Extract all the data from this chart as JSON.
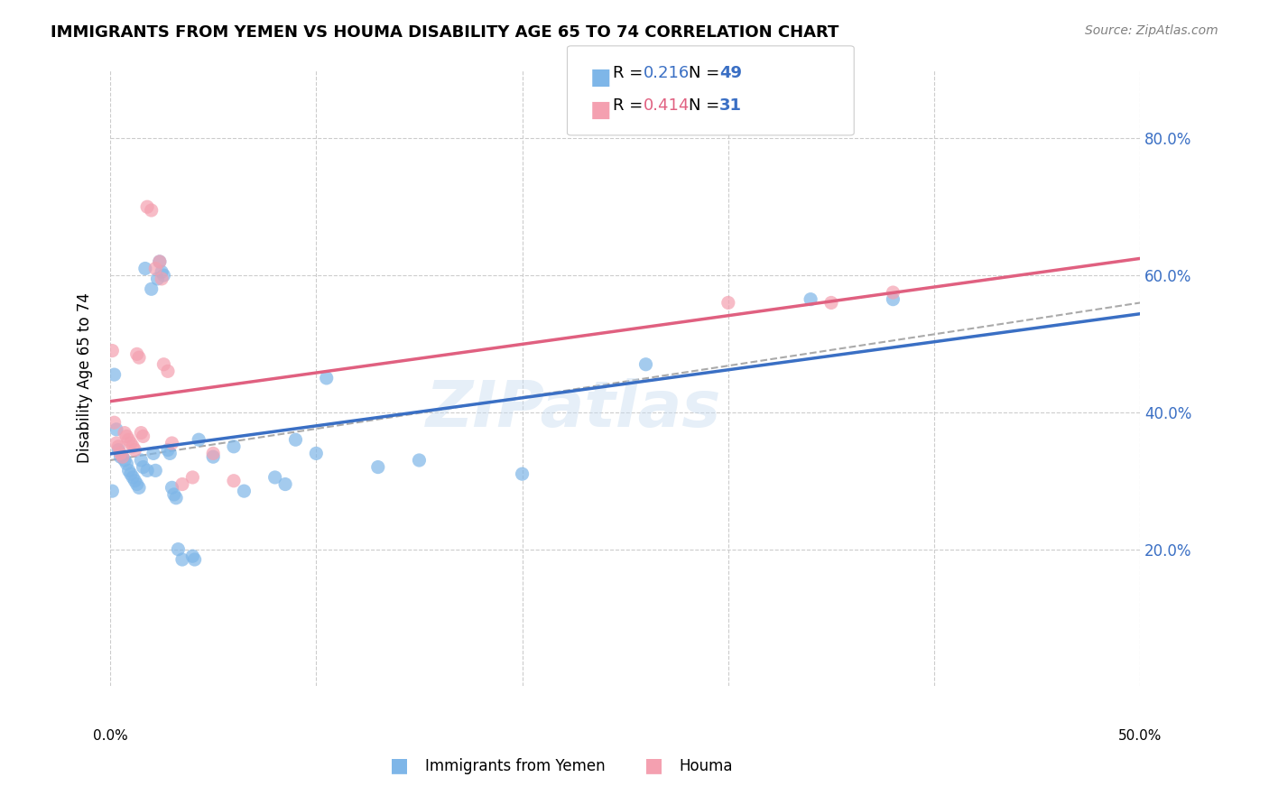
{
  "title": "IMMIGRANTS FROM YEMEN VS HOUMA DISABILITY AGE 65 TO 74 CORRELATION CHART",
  "source": "Source: ZipAtlas.com",
  "ylabel": "Disability Age 65 to 74",
  "watermark": "ZIPatlas",
  "xlim": [
    0.0,
    0.5
  ],
  "ylim": [
    0.0,
    0.9
  ],
  "yticks": [
    0.2,
    0.4,
    0.6,
    0.8
  ],
  "ytick_labels": [
    "20.0%",
    "40.0%",
    "60.0%",
    "80.0%"
  ],
  "xticks": [
    0.0,
    0.1,
    0.2,
    0.3,
    0.4,
    0.5
  ],
  "blue_color": "#7EB6E8",
  "pink_color": "#F4A0B0",
  "blue_line_color": "#3A6FC4",
  "pink_line_color": "#E06080",
  "dashed_line_color": "#AAAAAA",
  "blue_scatter": [
    [
      0.001,
      0.285
    ],
    [
      0.002,
      0.455
    ],
    [
      0.003,
      0.375
    ],
    [
      0.004,
      0.345
    ],
    [
      0.005,
      0.335
    ],
    [
      0.006,
      0.335
    ],
    [
      0.007,
      0.33
    ],
    [
      0.008,
      0.325
    ],
    [
      0.009,
      0.315
    ],
    [
      0.01,
      0.31
    ],
    [
      0.011,
      0.305
    ],
    [
      0.012,
      0.3
    ],
    [
      0.013,
      0.295
    ],
    [
      0.014,
      0.29
    ],
    [
      0.015,
      0.33
    ],
    [
      0.016,
      0.32
    ],
    [
      0.017,
      0.61
    ],
    [
      0.018,
      0.315
    ],
    [
      0.02,
      0.58
    ],
    [
      0.021,
      0.34
    ],
    [
      0.022,
      0.315
    ],
    [
      0.023,
      0.595
    ],
    [
      0.024,
      0.62
    ],
    [
      0.025,
      0.605
    ],
    [
      0.026,
      0.6
    ],
    [
      0.028,
      0.345
    ],
    [
      0.029,
      0.34
    ],
    [
      0.03,
      0.29
    ],
    [
      0.031,
      0.28
    ],
    [
      0.032,
      0.275
    ],
    [
      0.033,
      0.2
    ],
    [
      0.035,
      0.185
    ],
    [
      0.04,
      0.19
    ],
    [
      0.041,
      0.185
    ],
    [
      0.043,
      0.36
    ],
    [
      0.05,
      0.335
    ],
    [
      0.06,
      0.35
    ],
    [
      0.065,
      0.285
    ],
    [
      0.08,
      0.305
    ],
    [
      0.085,
      0.295
    ],
    [
      0.09,
      0.36
    ],
    [
      0.1,
      0.34
    ],
    [
      0.105,
      0.45
    ],
    [
      0.13,
      0.32
    ],
    [
      0.15,
      0.33
    ],
    [
      0.2,
      0.31
    ],
    [
      0.26,
      0.47
    ],
    [
      0.34,
      0.565
    ],
    [
      0.38,
      0.565
    ]
  ],
  "pink_scatter": [
    [
      0.001,
      0.49
    ],
    [
      0.002,
      0.385
    ],
    [
      0.003,
      0.355
    ],
    [
      0.004,
      0.35
    ],
    [
      0.005,
      0.34
    ],
    [
      0.006,
      0.335
    ],
    [
      0.007,
      0.37
    ],
    [
      0.008,
      0.365
    ],
    [
      0.009,
      0.36
    ],
    [
      0.01,
      0.355
    ],
    [
      0.011,
      0.35
    ],
    [
      0.012,
      0.345
    ],
    [
      0.013,
      0.485
    ],
    [
      0.014,
      0.48
    ],
    [
      0.015,
      0.37
    ],
    [
      0.016,
      0.365
    ],
    [
      0.018,
      0.7
    ],
    [
      0.02,
      0.695
    ],
    [
      0.022,
      0.61
    ],
    [
      0.024,
      0.62
    ],
    [
      0.025,
      0.595
    ],
    [
      0.026,
      0.47
    ],
    [
      0.028,
      0.46
    ],
    [
      0.03,
      0.355
    ],
    [
      0.035,
      0.295
    ],
    [
      0.04,
      0.305
    ],
    [
      0.05,
      0.34
    ],
    [
      0.06,
      0.3
    ],
    [
      0.3,
      0.56
    ],
    [
      0.35,
      0.56
    ],
    [
      0.38,
      0.575
    ]
  ]
}
